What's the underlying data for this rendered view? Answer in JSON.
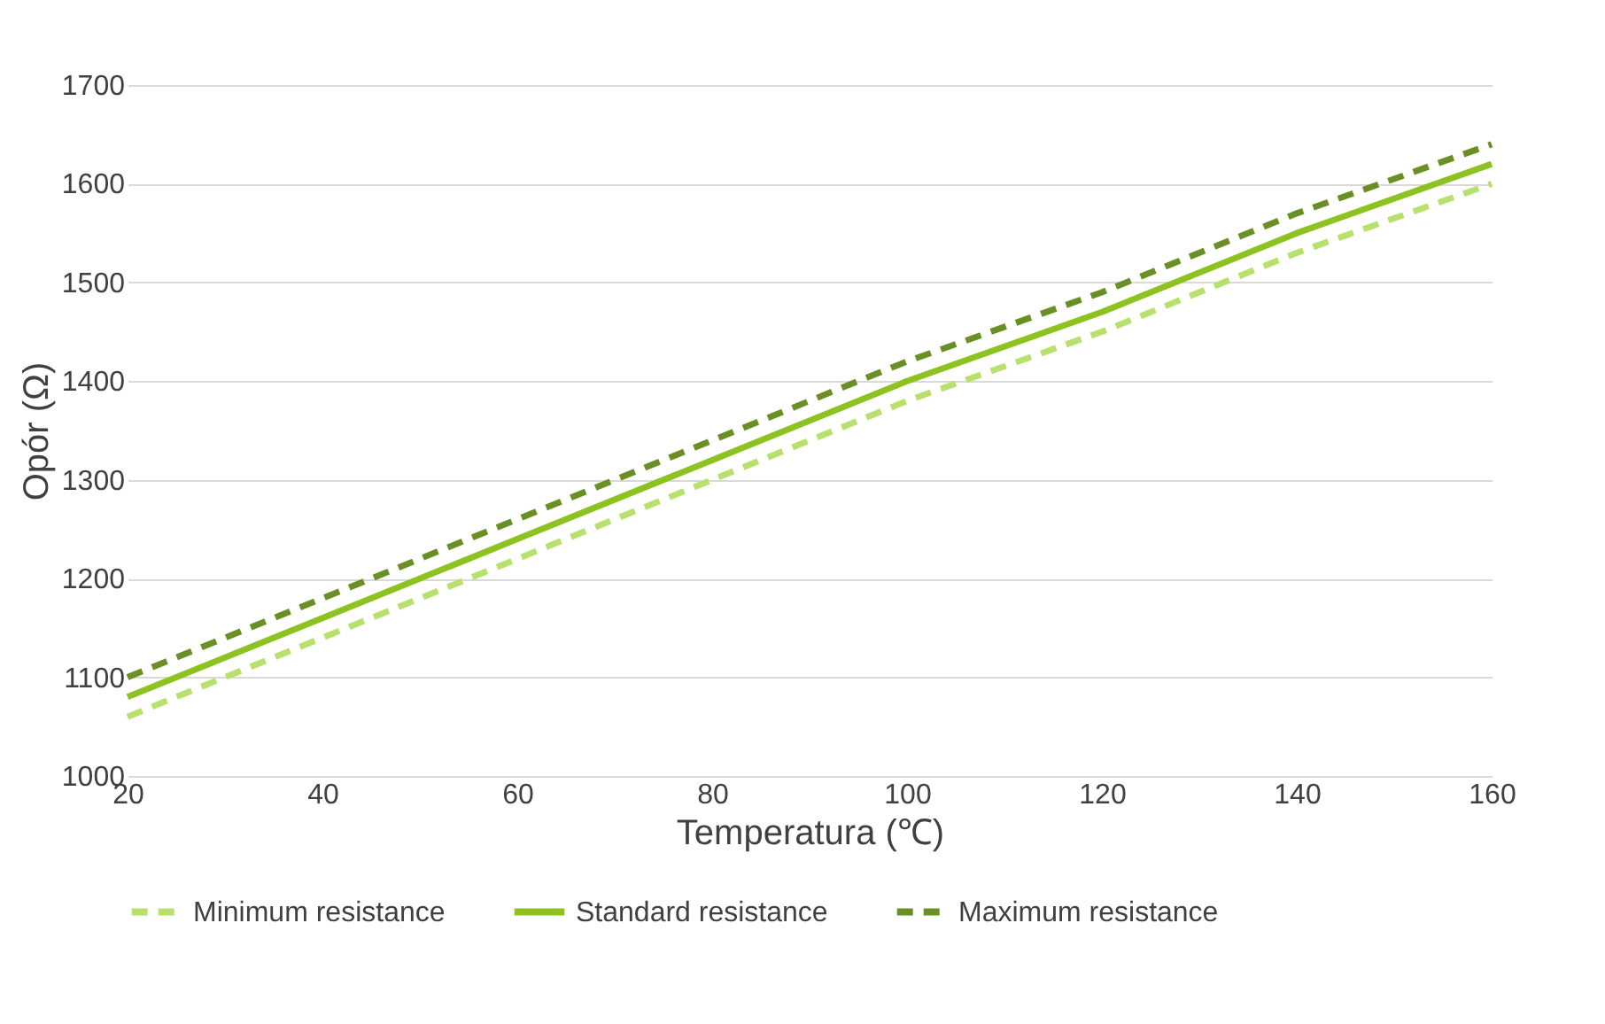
{
  "chart_data": {
    "type": "line",
    "xlabel": "Temperatura (℃)",
    "ylabel": "Opór (Ω)",
    "x": [
      20,
      40,
      60,
      80,
      100,
      120,
      140,
      160
    ],
    "series": [
      {
        "name": "Minimum resistance",
        "color": "#b8e06c",
        "line_style": "dashed",
        "values": [
          1060,
          1140,
          1220,
          1300,
          1380,
          1450,
          1530,
          1600
        ]
      },
      {
        "name": "Standard resistance",
        "color": "#8cc320",
        "line_style": "solid",
        "values": [
          1080,
          1160,
          1240,
          1320,
          1400,
          1470,
          1550,
          1620
        ]
      },
      {
        "name": "Maximum resistance",
        "color": "#6a8f24",
        "line_style": "dashed",
        "values": [
          1100,
          1180,
          1260,
          1340,
          1420,
          1490,
          1570,
          1640
        ]
      }
    ],
    "xlim": [
      20,
      160
    ],
    "xticks": [
      20,
      40,
      60,
      80,
      100,
      120,
      140,
      160
    ],
    "ylim": [
      1000,
      1700
    ],
    "yticks": [
      1000,
      1100,
      1200,
      1300,
      1400,
      1500,
      1600,
      1700
    ],
    "grid": "y",
    "legend": "bottom",
    "marker": "none"
  }
}
